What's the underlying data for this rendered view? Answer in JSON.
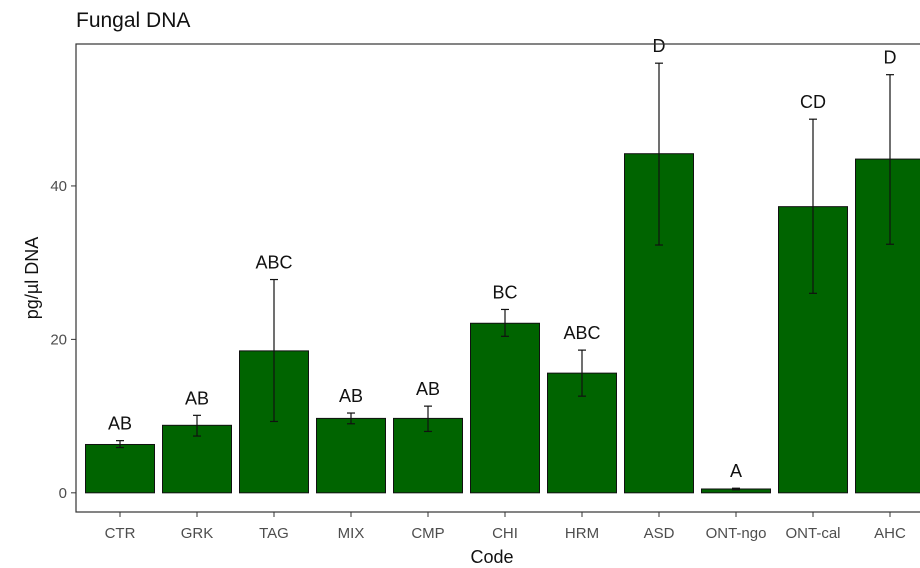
{
  "chart_data": {
    "type": "bar",
    "title": "Fungal DNA",
    "xlabel": "Code",
    "ylabel": "pg/µl DNA",
    "categories": [
      "CTR",
      "GRK",
      "TAG",
      "MIX",
      "CMP",
      "CHI",
      "HRM",
      "ASD",
      "ONT-ngo",
      "ONT-cal",
      "AHC"
    ],
    "values": [
      6.3,
      8.8,
      18.5,
      9.7,
      9.7,
      22.1,
      15.6,
      44.2,
      0.5,
      37.3,
      43.5
    ],
    "error_low": [
      5.9,
      7.4,
      9.3,
      9.0,
      8.0,
      20.4,
      12.6,
      32.3,
      0.4,
      26.0,
      32.4
    ],
    "error_high": [
      6.8,
      10.1,
      27.8,
      10.4,
      11.3,
      23.9,
      18.6,
      56.0,
      0.6,
      48.7,
      54.5
    ],
    "significance_labels": [
      "AB",
      "AB",
      "ABC",
      "AB",
      "AB",
      "BC",
      "ABC",
      "D",
      "A",
      "CD",
      "D"
    ],
    "yticks": [
      0,
      20,
      40
    ],
    "ylim": [
      -2.5,
      58.5
    ],
    "bar_color": "#006400",
    "grid": false
  }
}
